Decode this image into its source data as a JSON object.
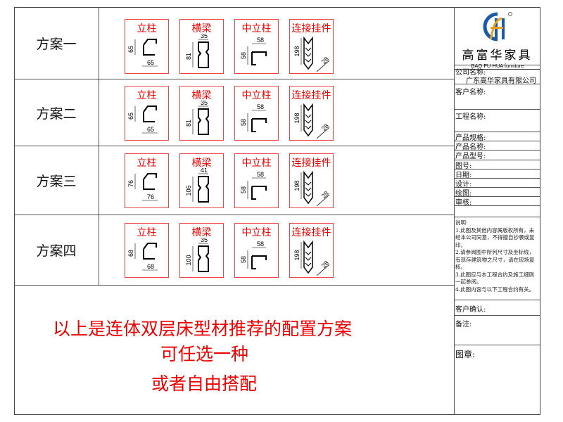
{
  "schemes": [
    {
      "label": "方案一",
      "parts": [
        {
          "name": "立柱",
          "a": "65",
          "b": "65"
        },
        {
          "name": "横梁",
          "a": "35",
          "b": "81"
        },
        {
          "name": "中立柱",
          "a": "58",
          "b": "58"
        },
        {
          "name": "连接挂件",
          "a": "198",
          "b": "28"
        }
      ]
    },
    {
      "label": "方案二",
      "parts": [
        {
          "name": "立柱",
          "a": "65",
          "b": "65"
        },
        {
          "name": "横梁",
          "a": "35",
          "b": "81"
        },
        {
          "name": "中立柱",
          "a": "58",
          "b": "58"
        },
        {
          "name": "连接挂件",
          "a": "198",
          "b": "28"
        }
      ]
    },
    {
      "label": "方案三",
      "parts": [
        {
          "name": "立柱",
          "a": "76",
          "b": "76"
        },
        {
          "name": "横梁",
          "a": "41",
          "b": "106"
        },
        {
          "name": "中立柱",
          "a": "58",
          "b": "58"
        },
        {
          "name": "连接挂件",
          "a": "198",
          "b": "28"
        }
      ]
    },
    {
      "label": "方案四",
      "parts": [
        {
          "name": "立柱",
          "a": "68",
          "b": "68"
        },
        {
          "name": "横梁",
          "a": "35",
          "b": "100"
        },
        {
          "name": "中立柱",
          "a": "58",
          "b": "58"
        },
        {
          "name": "连接挂件",
          "a": "198",
          "b": "28"
        }
      ]
    }
  ],
  "message": {
    "line1": "以上是连体双层床型材推荐的配置方案",
    "line2": "可任选一种",
    "line3": "或者自由搭配"
  },
  "titleblock": {
    "logo_cn": "高富华家具",
    "logo_en": "GAO FU HUA furniture",
    "company_label": "公司名称:",
    "company_value": "广东高华家具有限公司",
    "customer_label": "客户名称:",
    "project_label": "工程名称:",
    "spec_label": "产品规格:",
    "product_name_label": "产品名称:",
    "model_label": "产品型号:",
    "drawing_no_label": "图号:",
    "date_label": "日期:",
    "design_label": "设计:",
    "draw_label": "绘图:",
    "review_label": "审核:",
    "notes_title": "说明:",
    "notes": [
      "1.此图及其他内容属版权所有，未经本公司同意，不得擅自抄袭或复印。",
      "2.请参阅图中所列尺寸及坐标线，有现存建筑物之尺寸，请在现场复核。",
      "3.此图应与本工程合约及施工细则一起参阅。",
      "4.此图内容与以下工程合约有关。"
    ],
    "confirm_label": "客户确认:",
    "remark_label": "备注:",
    "stamp_label": "图章:"
  },
  "colors": {
    "accent": "#e00000",
    "logo_blue": "#1a5aa8",
    "logo_orange": "#e8a020"
  }
}
